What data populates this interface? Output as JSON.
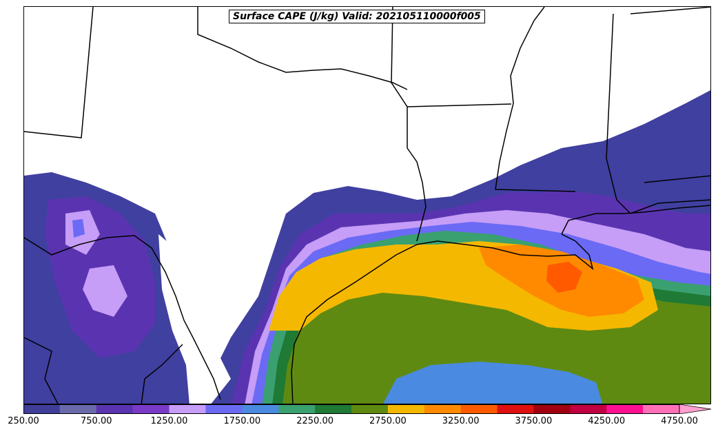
{
  "title": "Surface CAPE (J/kg) Valid: 202105110000f005",
  "colorbar": {
    "min": 250,
    "max": 4750,
    "extend": "max",
    "levels": [
      250,
      500,
      750,
      1000,
      1250,
      1500,
      1750,
      2000,
      2250,
      2500,
      2750,
      3000,
      3250,
      3500,
      3750,
      4000,
      4250,
      4500,
      4750
    ],
    "colors": [
      "#3f3f9a",
      "#6a6aaa",
      "#5a34b0",
      "#7a3ac8",
      "#c69df7",
      "#6a6af5",
      "#4a8ae0",
      "#3aa070",
      "#1e7a34",
      "#5f8a12",
      "#f5b800",
      "#ff8a00",
      "#ff5a00",
      "#e01010",
      "#a00010",
      "#c00040",
      "#ff1090",
      "#ff70b8",
      "#ffa0d0"
    ],
    "tick_labels": [
      "250.00",
      "750.00",
      "1250.00",
      "1750.00",
      "2250.00",
      "2750.00",
      "3250.00",
      "3750.00",
      "4250.00",
      "4750.00"
    ]
  },
  "map": {
    "region": "US Gulf Coast",
    "variable": "Surface CAPE",
    "units": "J/kg",
    "background": "#ffffff",
    "boundary_color": "#000000"
  }
}
